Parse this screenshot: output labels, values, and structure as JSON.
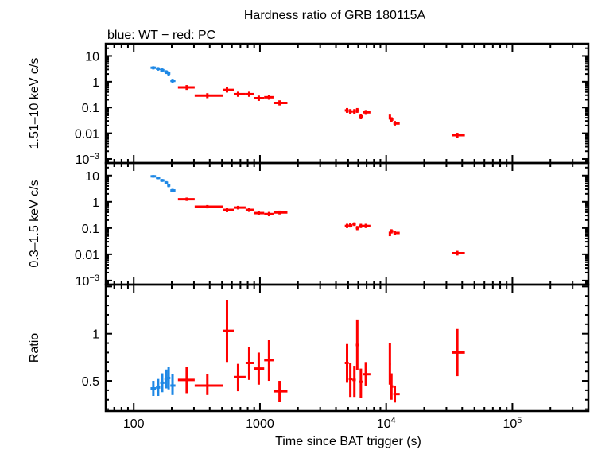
{
  "chart_data": {
    "type": "scatter",
    "title": "Hardness ratio of GRB 180115A",
    "subtitle": "blue: WT − red: PC",
    "xlabel": "Time since BAT trigger (s)",
    "xscale": "log",
    "xlim": [
      60,
      400000
    ],
    "xticks": [
      {
        "value": 100,
        "label": "100"
      },
      {
        "value": 1000,
        "label": "1000"
      },
      {
        "value": 10000,
        "label": "10",
        "sup": "4"
      },
      {
        "value": 100000,
        "label": "10",
        "sup": "5"
      }
    ],
    "legend": "top-left (subtitle text)",
    "series_colors": {
      "WT": "#1e88e5",
      "PC": "#ff0000"
    },
    "panels": [
      {
        "name": "hard",
        "ylabel": "1.51–10 keV c/s",
        "yscale": "log",
        "ylim": [
          0.0007,
          30
        ],
        "yticks": [
          {
            "value": 10,
            "label": "10"
          },
          {
            "value": 1,
            "label": "1"
          },
          {
            "value": 0.1,
            "label": "0.1"
          },
          {
            "value": 0.01,
            "label": "0.01"
          },
          {
            "value": 0.001,
            "label": "10",
            "sup": "−3"
          }
        ],
        "series": [
          {
            "name": "WT",
            "points": [
              {
                "x": 143,
                "xlo": 136,
                "xhi": 150,
                "y": 3.5,
                "ylo": 3.0,
                "yhi": 4.0
              },
              {
                "x": 156,
                "xlo": 150,
                "xhi": 162,
                "y": 3.2,
                "ylo": 2.7,
                "yhi": 3.7
              },
              {
                "x": 168,
                "xlo": 162,
                "xhi": 175,
                "y": 2.8,
                "ylo": 2.4,
                "yhi": 3.3
              },
              {
                "x": 181,
                "xlo": 175,
                "xhi": 187,
                "y": 2.4,
                "ylo": 2.0,
                "yhi": 2.8
              },
              {
                "x": 189,
                "xlo": 184,
                "xhi": 195,
                "y": 2.1,
                "ylo": 1.7,
                "yhi": 2.5
              },
              {
                "x": 203,
                "xlo": 195,
                "xhi": 214,
                "y": 1.08,
                "ylo": 0.9,
                "yhi": 1.3
              }
            ]
          },
          {
            "name": "PC",
            "points": [
              {
                "x": 263,
                "xlo": 224,
                "xhi": 304,
                "y": 0.6,
                "ylo": 0.48,
                "yhi": 0.74
              },
              {
                "x": 383,
                "xlo": 304,
                "xhi": 510,
                "y": 0.29,
                "ylo": 0.23,
                "yhi": 0.36
              },
              {
                "x": 548,
                "xlo": 510,
                "xhi": 620,
                "y": 0.48,
                "ylo": 0.38,
                "yhi": 0.6
              },
              {
                "x": 671,
                "xlo": 620,
                "xhi": 770,
                "y": 0.33,
                "ylo": 0.26,
                "yhi": 0.41
              },
              {
                "x": 822,
                "xlo": 770,
                "xhi": 900,
                "y": 0.33,
                "ylo": 0.26,
                "yhi": 0.41
              },
              {
                "x": 978,
                "xlo": 900,
                "xhi": 1080,
                "y": 0.23,
                "ylo": 0.18,
                "yhi": 0.29
              },
              {
                "x": 1180,
                "xlo": 1080,
                "xhi": 1280,
                "y": 0.25,
                "ylo": 0.2,
                "yhi": 0.31
              },
              {
                "x": 1430,
                "xlo": 1280,
                "xhi": 1650,
                "y": 0.15,
                "ylo": 0.12,
                "yhi": 0.19
              },
              {
                "x": 4900,
                "xlo": 4700,
                "xhi": 5050,
                "y": 0.077,
                "ylo": 0.062,
                "yhi": 0.095
              },
              {
                "x": 5200,
                "xlo": 5050,
                "xhi": 5400,
                "y": 0.07,
                "ylo": 0.056,
                "yhi": 0.087
              },
              {
                "x": 5600,
                "xlo": 5400,
                "xhi": 5750,
                "y": 0.07,
                "ylo": 0.056,
                "yhi": 0.087
              },
              {
                "x": 5900,
                "xlo": 5750,
                "xhi": 6100,
                "y": 0.077,
                "ylo": 0.062,
                "yhi": 0.095
              },
              {
                "x": 6300,
                "xlo": 6100,
                "xhi": 6500,
                "y": 0.045,
                "ylo": 0.035,
                "yhi": 0.057
              },
              {
                "x": 6900,
                "xlo": 6500,
                "xhi": 7500,
                "y": 0.065,
                "ylo": 0.052,
                "yhi": 0.08
              },
              {
                "x": 10700,
                "xlo": 10500,
                "xhi": 10900,
                "y": 0.042,
                "ylo": 0.034,
                "yhi": 0.053
              },
              {
                "x": 11000,
                "xlo": 10900,
                "xhi": 11400,
                "y": 0.034,
                "ylo": 0.027,
                "yhi": 0.042
              },
              {
                "x": 11700,
                "xlo": 11400,
                "xhi": 12800,
                "y": 0.024,
                "ylo": 0.02,
                "yhi": 0.03
              },
              {
                "x": 36600,
                "xlo": 33000,
                "xhi": 42000,
                "y": 0.0084,
                "ylo": 0.0068,
                "yhi": 0.0104
              }
            ]
          }
        ]
      },
      {
        "name": "soft",
        "ylabel": "0.3–1.5 keV c/s",
        "yscale": "log",
        "ylim": [
          0.0007,
          30
        ],
        "yticks": [
          {
            "value": 10,
            "label": "10"
          },
          {
            "value": 1,
            "label": "1"
          },
          {
            "value": 0.1,
            "label": "0.1"
          },
          {
            "value": 0.01,
            "label": "0.01"
          },
          {
            "value": 0.001,
            "label": "10",
            "sup": "−3"
          }
        ],
        "series": [
          {
            "name": "WT",
            "points": [
              {
                "x": 143,
                "xlo": 136,
                "xhi": 150,
                "y": 9.3,
                "ylo": 8.3,
                "yhi": 10.4
              },
              {
                "x": 156,
                "xlo": 150,
                "xhi": 162,
                "y": 8.1,
                "ylo": 7.2,
                "yhi": 9.1
              },
              {
                "x": 168,
                "xlo": 162,
                "xhi": 175,
                "y": 6.5,
                "ylo": 5.7,
                "yhi": 7.4
              },
              {
                "x": 181,
                "xlo": 175,
                "xhi": 187,
                "y": 5.3,
                "ylo": 4.6,
                "yhi": 6.1
              },
              {
                "x": 189,
                "xlo": 184,
                "xhi": 195,
                "y": 4.2,
                "ylo": 3.6,
                "yhi": 4.9
              },
              {
                "x": 203,
                "xlo": 195,
                "xhi": 214,
                "y": 2.7,
                "ylo": 2.3,
                "yhi": 3.1
              }
            ]
          },
          {
            "name": "PC",
            "points": [
              {
                "x": 263,
                "xlo": 224,
                "xhi": 304,
                "y": 1.25,
                "ylo": 1.08,
                "yhi": 1.45
              },
              {
                "x": 383,
                "xlo": 304,
                "xhi": 510,
                "y": 0.65,
                "ylo": 0.56,
                "yhi": 0.75
              },
              {
                "x": 548,
                "xlo": 510,
                "xhi": 620,
                "y": 0.49,
                "ylo": 0.4,
                "yhi": 0.59
              },
              {
                "x": 671,
                "xlo": 620,
                "xhi": 770,
                "y": 0.6,
                "ylo": 0.51,
                "yhi": 0.7
              },
              {
                "x": 822,
                "xlo": 770,
                "xhi": 900,
                "y": 0.49,
                "ylo": 0.41,
                "yhi": 0.58
              },
              {
                "x": 978,
                "xlo": 900,
                "xhi": 1080,
                "y": 0.37,
                "ylo": 0.31,
                "yhi": 0.44
              },
              {
                "x": 1180,
                "xlo": 1080,
                "xhi": 1280,
                "y": 0.34,
                "ylo": 0.28,
                "yhi": 0.41
              },
              {
                "x": 1430,
                "xlo": 1280,
                "xhi": 1650,
                "y": 0.39,
                "ylo": 0.33,
                "yhi": 0.46
              },
              {
                "x": 4900,
                "xlo": 4700,
                "xhi": 5050,
                "y": 0.12,
                "ylo": 0.1,
                "yhi": 0.145
              },
              {
                "x": 5200,
                "xlo": 5050,
                "xhi": 5400,
                "y": 0.125,
                "ylo": 0.105,
                "yhi": 0.15
              },
              {
                "x": 5600,
                "xlo": 5400,
                "xhi": 5750,
                "y": 0.14,
                "ylo": 0.12,
                "yhi": 0.165
              },
              {
                "x": 5900,
                "xlo": 5750,
                "xhi": 6100,
                "y": 0.1,
                "ylo": 0.083,
                "yhi": 0.12
              },
              {
                "x": 6300,
                "xlo": 6100,
                "xhi": 6500,
                "y": 0.12,
                "ylo": 0.1,
                "yhi": 0.145
              },
              {
                "x": 6900,
                "xlo": 6500,
                "xhi": 7500,
                "y": 0.12,
                "ylo": 0.1,
                "yhi": 0.145
              },
              {
                "x": 10700,
                "xlo": 10500,
                "xhi": 10900,
                "y": 0.06,
                "ylo": 0.049,
                "yhi": 0.073
              },
              {
                "x": 11000,
                "xlo": 10900,
                "xhi": 11400,
                "y": 0.075,
                "ylo": 0.062,
                "yhi": 0.09
              },
              {
                "x": 11700,
                "xlo": 11400,
                "xhi": 12800,
                "y": 0.065,
                "ylo": 0.054,
                "yhi": 0.078
              },
              {
                "x": 36600,
                "xlo": 33000,
                "xhi": 42000,
                "y": 0.011,
                "ylo": 0.009,
                "yhi": 0.0135
              }
            ]
          }
        ]
      },
      {
        "name": "ratio",
        "ylabel": "Ratio",
        "yscale": "linear",
        "ylim": [
          0.18,
          1.52
        ],
        "yticks": [
          {
            "value": 1,
            "label": "1"
          },
          {
            "value": 0.5,
            "label": "0.5"
          }
        ],
        "yminor_step": 0.1,
        "series": [
          {
            "name": "WT",
            "points": [
              {
                "x": 143,
                "xlo": 136,
                "xhi": 150,
                "y": 0.42,
                "ylo": 0.34,
                "yhi": 0.5
              },
              {
                "x": 156,
                "xlo": 150,
                "xhi": 162,
                "y": 0.43,
                "ylo": 0.34,
                "yhi": 0.52
              },
              {
                "x": 168,
                "xlo": 162,
                "xhi": 175,
                "y": 0.48,
                "ylo": 0.38,
                "yhi": 0.58
              },
              {
                "x": 181,
                "xlo": 175,
                "xhi": 187,
                "y": 0.52,
                "ylo": 0.42,
                "yhi": 0.62
              },
              {
                "x": 189,
                "xlo": 184,
                "xhi": 195,
                "y": 0.53,
                "ylo": 0.41,
                "yhi": 0.65
              },
              {
                "x": 203,
                "xlo": 195,
                "xhi": 214,
                "y": 0.45,
                "ylo": 0.35,
                "yhi": 0.57
              }
            ]
          },
          {
            "name": "PC",
            "points": [
              {
                "x": 263,
                "xlo": 224,
                "xhi": 304,
                "y": 0.51,
                "ylo": 0.37,
                "yhi": 0.65
              },
              {
                "x": 383,
                "xlo": 304,
                "xhi": 510,
                "y": 0.45,
                "ylo": 0.35,
                "yhi": 0.57
              },
              {
                "x": 548,
                "xlo": 510,
                "xhi": 620,
                "y": 1.03,
                "ylo": 0.7,
                "yhi": 1.36
              },
              {
                "x": 671,
                "xlo": 620,
                "xhi": 770,
                "y": 0.54,
                "ylo": 0.39,
                "yhi": 0.68
              },
              {
                "x": 822,
                "xlo": 770,
                "xhi": 900,
                "y": 0.69,
                "ylo": 0.51,
                "yhi": 0.86
              },
              {
                "x": 978,
                "xlo": 900,
                "xhi": 1080,
                "y": 0.63,
                "ylo": 0.46,
                "yhi": 0.8
              },
              {
                "x": 1180,
                "xlo": 1080,
                "xhi": 1280,
                "y": 0.72,
                "ylo": 0.5,
                "yhi": 0.93
              },
              {
                "x": 1430,
                "xlo": 1280,
                "xhi": 1650,
                "y": 0.39,
                "ylo": 0.28,
                "yhi": 0.5
              },
              {
                "x": 4900,
                "xlo": 4700,
                "xhi": 5050,
                "y": 0.69,
                "ylo": 0.48,
                "yhi": 0.89
              },
              {
                "x": 5200,
                "xlo": 5050,
                "xhi": 5400,
                "y": 0.52,
                "ylo": 0.33,
                "yhi": 0.69
              },
              {
                "x": 5600,
                "xlo": 5400,
                "xhi": 5750,
                "y": 0.51,
                "ylo": 0.33,
                "yhi": 0.66
              },
              {
                "x": 5900,
                "xlo": 5750,
                "xhi": 6100,
                "y": 0.88,
                "ylo": 0.61,
                "yhi": 1.15
              },
              {
                "x": 6300,
                "xlo": 6100,
                "xhi": 6500,
                "y": 0.49,
                "ylo": 0.32,
                "yhi": 0.63
              },
              {
                "x": 6900,
                "xlo": 6500,
                "xhi": 7500,
                "y": 0.57,
                "ylo": 0.45,
                "yhi": 0.7
              },
              {
                "x": 10700,
                "xlo": 10500,
                "xhi": 10900,
                "y": 0.68,
                "ylo": 0.46,
                "yhi": 0.9
              },
              {
                "x": 11000,
                "xlo": 10900,
                "xhi": 11400,
                "y": 0.44,
                "ylo": 0.3,
                "yhi": 0.58
              },
              {
                "x": 11700,
                "xlo": 11400,
                "xhi": 12800,
                "y": 0.36,
                "ylo": 0.27,
                "yhi": 0.45
              },
              {
                "x": 36600,
                "xlo": 33000,
                "xhi": 42000,
                "y": 0.8,
                "ylo": 0.55,
                "yhi": 1.05
              }
            ]
          }
        ]
      }
    ]
  }
}
